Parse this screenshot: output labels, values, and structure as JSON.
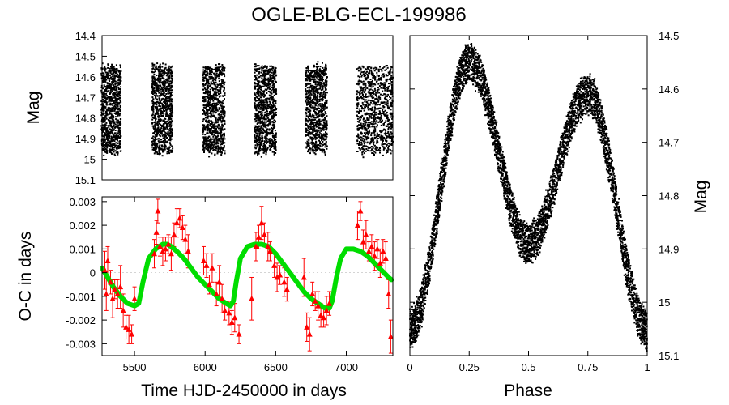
{
  "title": "OGLE-BLG-ECL-199986",
  "colors": {
    "points": "#000000",
    "oc": "#ff0000",
    "fit": "#00dd00"
  },
  "chart_data": [
    {
      "id": "lightcurve_time",
      "type": "scatter",
      "ylabel": "Mag",
      "xlim": [
        5270,
        7330
      ],
      "ylim": [
        14.4,
        15.1
      ],
      "y_inverted": true,
      "yticks": [
        "14.4",
        "14.5",
        "14.6",
        "14.7",
        "14.8",
        "14.9",
        "15",
        "15.1"
      ],
      "yticks_values": [
        14.4,
        14.5,
        14.6,
        14.7,
        14.8,
        14.9,
        15.0,
        15.1
      ],
      "season_ranges": [
        [
          5265,
          5405
        ],
        [
          5625,
          5770
        ],
        [
          5985,
          6140
        ],
        [
          6350,
          6505
        ],
        [
          6710,
          6865
        ],
        [
          7075,
          7330
        ]
      ],
      "mag_range": [
        14.55,
        14.97
      ]
    },
    {
      "id": "oc_diagram",
      "type": "scatter",
      "xlabel": "Time HJD-2450000 in days",
      "ylabel": "O-C in days",
      "xlim": [
        5270,
        7330
      ],
      "ylim": [
        -0.0035,
        0.0032
      ],
      "xticks": [
        "5500",
        "6000",
        "6500",
        "7000"
      ],
      "xticks_values": [
        5500,
        6000,
        6500,
        7000
      ],
      "yticks": [
        "0.003",
        "0.002",
        "0.001",
        "0",
        "-0.001",
        "-0.002",
        "-0.003"
      ],
      "yticks_values": [
        0.003,
        0.002,
        0.001,
        0,
        -0.001,
        -0.002,
        -0.003
      ],
      "series": [
        {
          "name": "O-C",
          "marker": "triangle",
          "points": [
            [
              5290,
              0.0001,
              0.0008
            ],
            [
              5300,
              -0.0009,
              0.0007
            ],
            [
              5310,
              0.0005,
              0.0006
            ],
            [
              5330,
              -0.0004,
              0.0005
            ],
            [
              5345,
              -0.0011,
              0.0008
            ],
            [
              5360,
              -0.0007,
              0.0004
            ],
            [
              5380,
              -0.0009,
              0.0006
            ],
            [
              5400,
              -0.0006,
              0.0009
            ],
            [
              5420,
              -0.0016,
              0.0007
            ],
            [
              5440,
              -0.0023,
              0.0005
            ],
            [
              5460,
              -0.0024,
              0.0006
            ],
            [
              5480,
              -0.0026,
              0.0004
            ],
            [
              5500,
              -0.0011,
              0.0005
            ],
            [
              5640,
              0.0008,
              0.0006
            ],
            [
              5655,
              0.0017,
              0.0005
            ],
            [
              5665,
              0.0026,
              0.0005
            ],
            [
              5680,
              0.0011,
              0.0004
            ],
            [
              5700,
              0.0009,
              0.0006
            ],
            [
              5720,
              0.001,
              0.0005
            ],
            [
              5740,
              0.0012,
              0.0004
            ],
            [
              5760,
              0.0008,
              0.0007
            ],
            [
              5780,
              0.0016,
              0.0005
            ],
            [
              5800,
              0.0021,
              0.0006
            ],
            [
              5820,
              0.0023,
              0.0004
            ],
            [
              5840,
              0.0019,
              0.0005
            ],
            [
              5860,
              0.0014,
              0.0006
            ],
            [
              5880,
              0.0009,
              0.0007
            ],
            [
              5990,
              0.0005,
              0.0006
            ],
            [
              6010,
              0.0003,
              0.0005
            ],
            [
              6030,
              -0.0005,
              0.0004
            ],
            [
              6050,
              0.0002,
              0.0006
            ],
            [
              6080,
              -0.0009,
              0.0005
            ],
            [
              6100,
              -0.0004,
              0.0007
            ],
            [
              6120,
              -0.0011,
              0.0006
            ],
            [
              6140,
              -0.0016,
              0.0004
            ],
            [
              6170,
              -0.0017,
              0.0005
            ],
            [
              6190,
              -0.0021,
              0.0005
            ],
            [
              6210,
              -0.0019,
              0.0006
            ],
            [
              6240,
              -0.0026,
              0.0004
            ],
            [
              6330,
              -0.0011,
              0.0009
            ],
            [
              6360,
              0.0011,
              0.0006
            ],
            [
              6380,
              0.0015,
              0.0005
            ],
            [
              6400,
              0.0021,
              0.0007
            ],
            [
              6420,
              0.0016,
              0.0005
            ],
            [
              6445,
              0.0011,
              0.0006
            ],
            [
              6460,
              0.0009,
              0.0004
            ],
            [
              6490,
              0.0003,
              0.0005
            ],
            [
              6510,
              -0.0002,
              0.0006
            ],
            [
              6530,
              -0.0001,
              0.0004
            ],
            [
              6560,
              -0.0004,
              0.0006
            ],
            [
              6580,
              -0.0007,
              0.0005
            ],
            [
              6700,
              -0.0002,
              0.0008
            ],
            [
              6720,
              -0.0023,
              0.0006
            ],
            [
              6740,
              -0.0026,
              0.0007
            ],
            [
              6760,
              -0.0009,
              0.0005
            ],
            [
              6780,
              -0.0012,
              0.0004
            ],
            [
              6800,
              -0.0014,
              0.0006
            ],
            [
              6820,
              -0.0018,
              0.0005
            ],
            [
              6840,
              -0.0019,
              0.0004
            ],
            [
              6860,
              -0.0016,
              0.0006
            ],
            [
              6880,
              -0.0013,
              0.0005
            ],
            [
              7080,
              0.002,
              0.0006
            ],
            [
              7100,
              0.0026,
              0.0004
            ],
            [
              7120,
              0.0013,
              0.0005
            ],
            [
              7140,
              0.0016,
              0.0006
            ],
            [
              7160,
              0.0009,
              0.0004
            ],
            [
              7180,
              0.0011,
              0.0005
            ],
            [
              7200,
              0.0007,
              0.0006
            ],
            [
              7220,
              0.001,
              0.0004
            ],
            [
              7240,
              0.0004,
              0.0006
            ],
            [
              7260,
              0.0009,
              0.0005
            ],
            [
              7280,
              0.0006,
              0.0007
            ],
            [
              7300,
              -0.0009,
              0.0006
            ],
            [
              7315,
              -0.0027,
              0.0007
            ]
          ]
        },
        {
          "name": "fit",
          "type": "line",
          "x": [
            5270,
            5300,
            5350,
            5400,
            5450,
            5500,
            5530,
            5560,
            5600,
            5650,
            5700,
            5730,
            5760,
            5800,
            5850,
            5900,
            5950,
            6000,
            6050,
            6100,
            6150,
            6180,
            6200,
            6220,
            6250,
            6300,
            6350,
            6400,
            6450,
            6500,
            6550,
            6600,
            6650,
            6700,
            6750,
            6800,
            6850,
            6880,
            6900,
            6930,
            6960,
            7000,
            7050,
            7100,
            7150,
            7200,
            7250,
            7300,
            7320
          ],
          "y": [
            0.0002,
            -0.0001,
            -0.0006,
            -0.001,
            -0.0013,
            -0.0014,
            -0.0013,
            -0.0004,
            0.0006,
            0.001,
            0.0012,
            0.0012,
            0.0011,
            0.0009,
            0.0006,
            0.0002,
            -0.0002,
            -0.0005,
            -0.0008,
            -0.0011,
            -0.0013,
            -0.0014,
            -0.0012,
            -0.0004,
            0.0006,
            0.0011,
            0.0012,
            0.0012,
            0.0011,
            0.0008,
            0.0004,
            0.0,
            -0.0004,
            -0.0008,
            -0.0011,
            -0.0013,
            -0.0015,
            -0.0015,
            -0.0012,
            -0.0002,
            0.0006,
            0.001,
            0.001,
            0.0009,
            0.0007,
            0.0004,
            0.0001,
            -0.0002,
            -0.0003
          ]
        }
      ]
    },
    {
      "id": "phased_lightcurve",
      "type": "scatter",
      "xlabel": "Phase",
      "ylabel": "Mag",
      "xlim": [
        0,
        1
      ],
      "ylim": [
        14.5,
        15.1
      ],
      "y_inverted": true,
      "xticks": [
        "0",
        "0.25",
        "0.5",
        "0.75",
        "1"
      ],
      "xticks_values": [
        0,
        0.25,
        0.5,
        0.75,
        1
      ],
      "yticks": [
        "14.5",
        "14.6",
        "14.7",
        "14.8",
        "14.9",
        "15",
        "15.1"
      ],
      "yticks_values": [
        14.5,
        14.6,
        14.7,
        14.8,
        14.9,
        15.0,
        15.1
      ],
      "model": {
        "min_mag_phase0": 15.05,
        "max_mag_phase025": 14.55,
        "min_mag_phase05": 14.89,
        "max_mag_phase075": 14.61,
        "scatter_mag": 0.035
      }
    }
  ]
}
